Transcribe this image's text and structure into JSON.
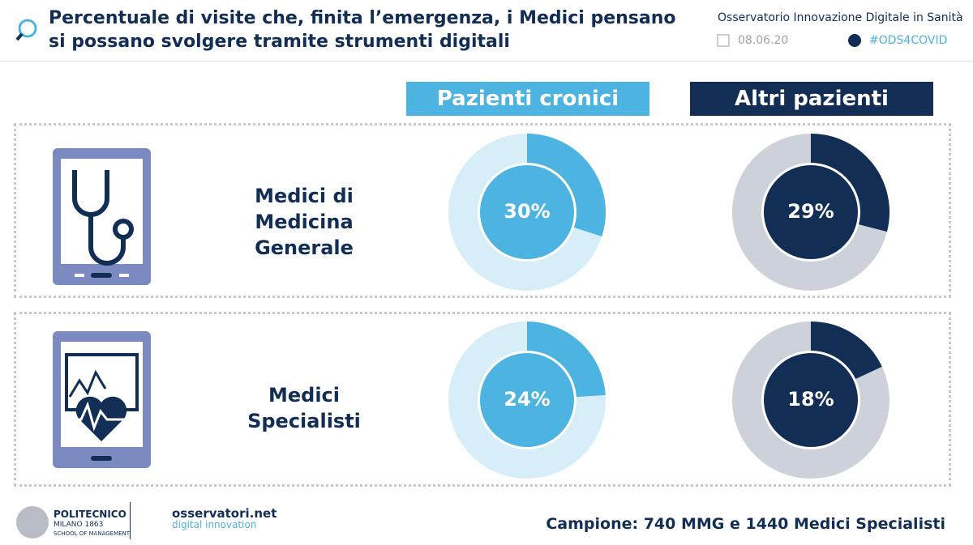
{
  "header": {
    "title": "Percentuale di visite che, finita l’emergenza, i Medici pensano si possano svolgere tramite strumenti digitali",
    "source": "Osservatorio Innovazione Digitale in Sanità",
    "date": "08.06.20",
    "hashtag": "#ODS4COVID"
  },
  "columns": [
    "Pazienti cronici",
    "Altri pazienti"
  ],
  "rows": [
    "Medici di Medicina Generale",
    "Medici Specialisti"
  ],
  "chart_data": [
    {
      "type": "pie",
      "values": [
        30
      ],
      "value_labels": [
        "30%"
      ],
      "color": "#4db3e1",
      "track_color": "#d7eef8"
    },
    {
      "type": "pie",
      "values": [
        29
      ],
      "value_labels": [
        "29%"
      ],
      "color": "#132e55",
      "track_color": "#cdd2da"
    },
    {
      "type": "pie",
      "values": [
        24
      ],
      "value_labels": [
        "24%"
      ],
      "color": "#4db3e1",
      "track_color": "#d7eef8"
    },
    {
      "type": "pie",
      "values": [
        18
      ],
      "value_labels": [
        "18%"
      ],
      "color": "#132e55",
      "track_color": "#cdd2da"
    }
  ],
  "footer": {
    "sample": "Campione: 740 MMG e 1440 Medici Specialisti",
    "logo1": [
      "POLITECNICO",
      "MILANO 1863",
      "SCHOOL OF MANAGEMENT"
    ],
    "logo2": [
      "osservatori.net",
      "digital innovation"
    ]
  }
}
